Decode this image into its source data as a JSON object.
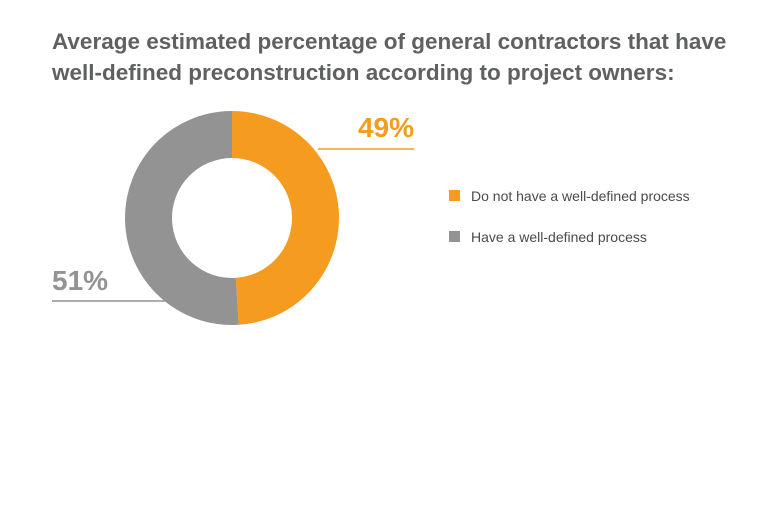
{
  "title_lines": [
    "Average estimated percentage of general contractors that have",
    "well-defined preconstruction according to project owners:"
  ],
  "colors": {
    "orange": "#f59c20",
    "gray": "#939393",
    "title": "#5f6161"
  },
  "chart_data": {
    "type": "pie",
    "donut": true,
    "title": "Average estimated percentage of general contractors that have well-defined preconstruction according to project owners:",
    "legend_position": "right",
    "slices": [
      {
        "label": "Do not have a well-defined process",
        "value": 49,
        "display": "49%",
        "color": "#f59c20"
      },
      {
        "label": "Have a well-defined process",
        "value": 51,
        "display": "51%",
        "color": "#939393"
      }
    ]
  }
}
